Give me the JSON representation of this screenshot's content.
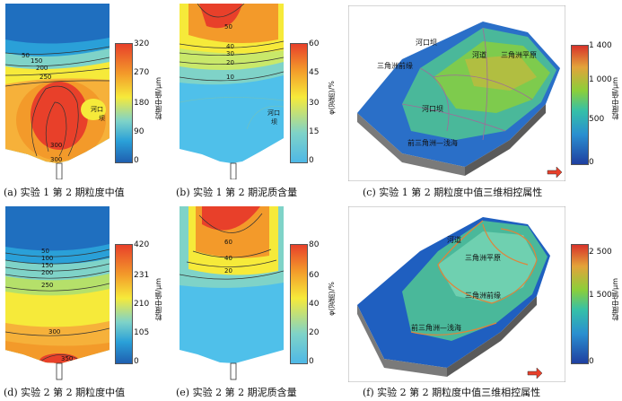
{
  "panels": [
    {
      "id": "a",
      "caption": "(a) 实验 1 第 2 期粒度中值",
      "colorbar": {
        "ticks": [
          "320",
          "270",
          "180",
          "90",
          "0"
        ],
        "title": "粒度中值/μm"
      },
      "contours": [
        "50",
        "150",
        "200",
        "250",
        "300",
        "300"
      ],
      "labels": [
        "河口",
        "坝"
      ]
    },
    {
      "id": "b",
      "caption": "(b) 实验 1 第 2 期泥质含量",
      "colorbar": {
        "ticks": [
          "60",
          "45",
          "30",
          "15",
          "0"
        ],
        "title": "φ(泥质)/%"
      },
      "contours": [
        "50",
        "40",
        "30",
        "20",
        "10"
      ],
      "labels": [
        "河口",
        "坝"
      ]
    },
    {
      "id": "c",
      "caption": "(c) 实验 1 第 2 期粒度中值三维相控属性",
      "colorbar": {
        "ticks": [
          "1 400",
          "1 000",
          "500",
          "0"
        ],
        "title": "粒度中值/μm"
      },
      "labels": [
        "河口坝",
        "河道",
        "三角洲平原",
        "三角洲前缘",
        "河口坝",
        "前三角洲—浅海"
      ]
    },
    {
      "id": "d",
      "caption": "(d) 实验 2 第 2 期粒度中值",
      "colorbar": {
        "ticks": [
          "420",
          "231",
          "210",
          "105",
          "0"
        ],
        "title": "粒度中值/μm"
      },
      "contours": [
        "50",
        "100",
        "150",
        "200",
        "250",
        "300",
        "350"
      ]
    },
    {
      "id": "e",
      "caption": "(e) 实验 2 第 2 期泥质含量",
      "colorbar": {
        "ticks": [
          "80",
          "60",
          "40",
          "20",
          "0"
        ],
        "title": "φ(泥质)/%"
      },
      "contours": [
        "60",
        "40",
        "20"
      ]
    },
    {
      "id": "f",
      "caption": "(f) 实验 2 第 2 期粒度中值三维相控属性",
      "colorbar": {
        "ticks": [
          "2 500",
          "1 500",
          "0"
        ],
        "title": "粒度中值/μm"
      },
      "labels": [
        "河道",
        "三角洲平原",
        "三角洲前缘",
        "前三角洲—浅海"
      ]
    }
  ],
  "colors": {
    "jet_red": "#e8402a",
    "jet_yellow": "#f6ea3a",
    "jet_cyan": "#7fd3c8",
    "jet_blue": "#1f5fb0",
    "mud_light": "#4fb8e6"
  }
}
